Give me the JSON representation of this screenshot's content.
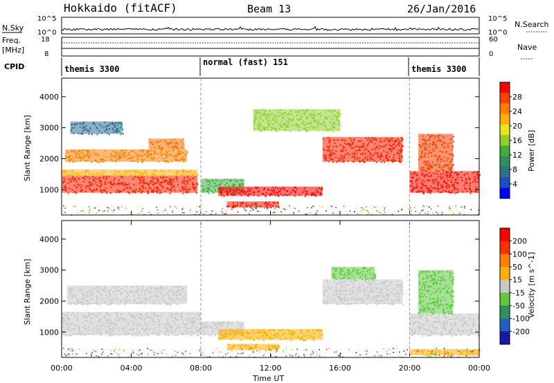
{
  "header": {
    "station": "Hokkaido (fitACF)",
    "beam": "Beam 13",
    "date": "26/Jan/2016"
  },
  "panels": {
    "nsky_label": "N.Sky",
    "nsky_ticks": [
      "10^5",
      "10^0"
    ],
    "nsearch_label": "N.Search",
    "freq_label": "Freq.",
    "freq_unit": "[MHz]",
    "freq_ticks": [
      "18",
      "8"
    ],
    "nave_label": "Nave",
    "nave_ticks": [
      "60",
      "0"
    ],
    "cpid_label": "CPID",
    "cpid_segments": [
      {
        "label": "themis 3300",
        "start": 0,
        "end": 8
      },
      {
        "label": "normal (fast) 151",
        "start": 8,
        "end": 20
      },
      {
        "label": "themis 3300",
        "start": 20,
        "end": 24
      }
    ]
  },
  "chart_data": [
    {
      "type": "heatmap",
      "title": "Power",
      "ylabel": "Slant Range [km]",
      "ylim": [
        180,
        4600
      ],
      "xlim": [
        0,
        24
      ],
      "yticks": [
        1000,
        2000,
        3000,
        4000
      ],
      "colorbar_label": "Power [dB]",
      "colorbar_ticks": [
        "28",
        "24",
        "20",
        "16",
        "12",
        "8",
        "4"
      ],
      "colorbar_colors": [
        "#0000ff",
        "#1f4fbf",
        "#2f6f8f",
        "#2f8f5f",
        "#3fae3f",
        "#8fcf2f",
        "#e6e619",
        "#ffb000",
        "#ff8000",
        "#ff4000",
        "#ff0000"
      ],
      "regions": [
        {
          "t0": 0.0,
          "t1": 7.8,
          "r0": 900,
          "r1": 1450,
          "color": "#ff2000"
        },
        {
          "t0": 0.0,
          "t1": 7.8,
          "r0": 1450,
          "r1": 1650,
          "color": "#ffb000"
        },
        {
          "t0": 0.2,
          "t1": 7.2,
          "r0": 1900,
          "r1": 2300,
          "color": "#ff8000"
        },
        {
          "t0": 5.0,
          "t1": 7.0,
          "r0": 2300,
          "r1": 2650,
          "color": "#ff7000"
        },
        {
          "t0": 8.0,
          "t1": 10.5,
          "r0": 900,
          "r1": 1350,
          "color": "#3fae3f"
        },
        {
          "t0": 9.0,
          "t1": 15.0,
          "r0": 800,
          "r1": 1100,
          "color": "#ff0000"
        },
        {
          "t0": 9.5,
          "t1": 12.5,
          "r0": 420,
          "r1": 620,
          "color": "#ff1000"
        },
        {
          "t0": 15.0,
          "t1": 19.6,
          "r0": 1900,
          "r1": 2700,
          "color": "#ff2000"
        },
        {
          "t0": 20.0,
          "t1": 24.0,
          "r0": 900,
          "r1": 1600,
          "color": "#ff1000"
        },
        {
          "t0": 20.5,
          "t1": 22.5,
          "r0": 1600,
          "r1": 2800,
          "color": "#ff4000"
        },
        {
          "t0": 11.0,
          "t1": 16.0,
          "r0": 2900,
          "r1": 3600,
          "color": "#8fcf2f"
        },
        {
          "t0": 0.5,
          "t1": 3.5,
          "r0": 2800,
          "r1": 3200,
          "color": "#2f6f8f"
        }
      ]
    },
    {
      "type": "heatmap",
      "title": "Velocity",
      "ylabel": "Slant Range [km]",
      "xlabel": "Time UT",
      "ylim": [
        180,
        4600
      ],
      "xlim": [
        0,
        24
      ],
      "yticks": [
        1000,
        2000,
        3000,
        4000
      ],
      "xticks": [
        "00:00",
        "04:00",
        "08:00",
        "12:00",
        "16:00",
        "20:00",
        "00:00"
      ],
      "colorbar_label": "Velocity [m s^-1]",
      "colorbar_ticks": [
        "200",
        "100",
        "50",
        "15",
        "-15",
        "-50",
        "-100",
        "-200"
      ],
      "colorbar_colors": [
        "#1a1aa0",
        "#2060c0",
        "#2f8f5f",
        "#5fc83f",
        "#c8c8c8",
        "#ffb000",
        "#ff8000",
        "#ff3000",
        "#ff0000"
      ],
      "regions": [
        {
          "t0": 0.0,
          "t1": 8.0,
          "r0": 900,
          "r1": 1650,
          "color": "#c8c8c8"
        },
        {
          "t0": 0.3,
          "t1": 7.2,
          "r0": 1900,
          "r1": 2500,
          "color": "#c8c8c8"
        },
        {
          "t0": 8.0,
          "t1": 10.5,
          "r0": 900,
          "r1": 1350,
          "color": "#c8c8c8"
        },
        {
          "t0": 9.0,
          "t1": 15.0,
          "r0": 750,
          "r1": 1100,
          "color": "#ffb000"
        },
        {
          "t0": 9.5,
          "t1": 12.5,
          "r0": 420,
          "r1": 620,
          "color": "#ffb000"
        },
        {
          "t0": 15.0,
          "t1": 19.6,
          "r0": 1900,
          "r1": 2700,
          "color": "#c8c8c8"
        },
        {
          "t0": 15.5,
          "t1": 18.0,
          "r0": 2700,
          "r1": 3100,
          "color": "#5fc83f"
        },
        {
          "t0": 20.0,
          "t1": 24.0,
          "r0": 900,
          "r1": 1600,
          "color": "#c8c8c8"
        },
        {
          "t0": 20.5,
          "t1": 22.5,
          "r0": 1600,
          "r1": 3000,
          "color": "#5fc83f"
        },
        {
          "t0": 20.0,
          "t1": 24.0,
          "r0": 250,
          "r1": 450,
          "color": "#ffb000"
        }
      ]
    }
  ]
}
